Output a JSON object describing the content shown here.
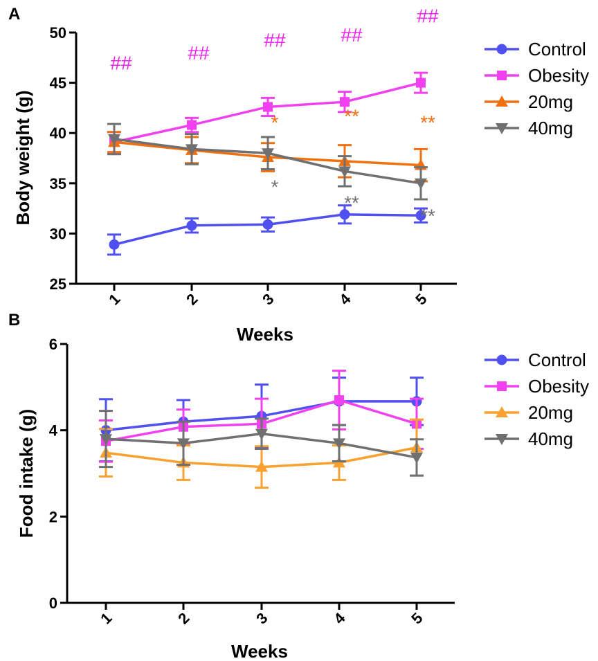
{
  "chart_data": [
    {
      "panel_label": "A",
      "type": "line",
      "xlabel": "Weeks",
      "ylabel": "Body weight (g)",
      "categories": [
        "1",
        "2",
        "3",
        "4",
        "5"
      ],
      "ylim": [
        25,
        50
      ],
      "yticks": [
        "25",
        "30",
        "35",
        "40",
        "45",
        "50"
      ],
      "grid": false,
      "legend_position": "right",
      "series": [
        {
          "name": "Control",
          "color": "#5050f0",
          "marker": "circle",
          "values": [
            28.9,
            30.8,
            30.9,
            31.9,
            31.8
          ],
          "errors": [
            1.0,
            0.7,
            0.7,
            0.9,
            0.7
          ]
        },
        {
          "name": "Obesity",
          "color": "#f040f0",
          "marker": "square",
          "values": [
            39.1,
            40.8,
            42.6,
            43.1,
            45.0
          ],
          "errors": [
            1.0,
            0.7,
            0.9,
            1.0,
            1.0
          ]
        },
        {
          "name": "20mg",
          "color": "#f07010",
          "marker": "triangle-up",
          "values": [
            39.1,
            38.3,
            37.6,
            37.2,
            36.8
          ],
          "errors": [
            1.0,
            1.3,
            1.4,
            1.6,
            1.6
          ]
        },
        {
          "name": "40mg",
          "color": "#707070",
          "marker": "triangle-down",
          "values": [
            39.4,
            38.4,
            38.0,
            36.2,
            35.0
          ],
          "errors": [
            1.5,
            1.5,
            1.6,
            1.5,
            1.6
          ]
        }
      ],
      "annotations": [
        {
          "text": "##",
          "color": "#f020f0",
          "x": "1",
          "y": 46.3
        },
        {
          "text": "##",
          "color": "#f020f0",
          "x": "2",
          "y": 47.3
        },
        {
          "text": "##",
          "color": "#f020f0",
          "x": "3",
          "y": 48.6
        },
        {
          "text": "##",
          "color": "#f020f0",
          "x": "4",
          "y": 49.1
        },
        {
          "text": "##",
          "color": "#f020f0",
          "x": "5",
          "y": 51.0
        },
        {
          "text": "*",
          "color": "#f07010",
          "x": "3",
          "y": 40.4
        },
        {
          "text": "**",
          "color": "#f07010",
          "x": "4",
          "y": 41.0
        },
        {
          "text": "**",
          "color": "#f07010",
          "x": "5",
          "y": 40.4
        },
        {
          "text": "*",
          "color": "#707070",
          "x": "3",
          "y": 34.0
        },
        {
          "text": "**",
          "color": "#707070",
          "x": "4",
          "y": 32.4
        },
        {
          "text": "**",
          "color": "#707070",
          "x": "5",
          "y": 31.1
        }
      ]
    },
    {
      "panel_label": "B",
      "type": "line",
      "xlabel": "Weeks",
      "ylabel": "Food intake (g)",
      "categories": [
        "1",
        "2",
        "3",
        "4",
        "5"
      ],
      "ylim": [
        0,
        6
      ],
      "yticks": [
        "0",
        "2",
        "4",
        "6"
      ],
      "grid": false,
      "legend_position": "right",
      "series": [
        {
          "name": "Control",
          "color": "#5050f0",
          "marker": "circle",
          "values": [
            4.0,
            4.2,
            4.33,
            4.67,
            4.67
          ],
          "errors": [
            0.72,
            0.5,
            0.73,
            0.55,
            0.55
          ]
        },
        {
          "name": "Obesity",
          "color": "#f040f0",
          "marker": "square",
          "values": [
            3.75,
            4.08,
            4.15,
            4.7,
            4.15
          ],
          "errors": [
            0.48,
            0.4,
            0.58,
            0.68,
            0.58
          ]
        },
        {
          "name": "20mg",
          "color": "#f8a030",
          "marker": "triangle-up",
          "values": [
            3.48,
            3.25,
            3.15,
            3.25,
            3.6
          ],
          "errors": [
            0.55,
            0.4,
            0.48,
            0.4,
            0.65
          ]
        },
        {
          "name": "40mg",
          "color": "#707070",
          "marker": "triangle-down",
          "values": [
            3.8,
            3.7,
            3.92,
            3.7,
            3.37
          ],
          "errors": [
            0.65,
            0.5,
            0.35,
            0.42,
            0.42
          ]
        }
      ],
      "annotations": []
    }
  ]
}
